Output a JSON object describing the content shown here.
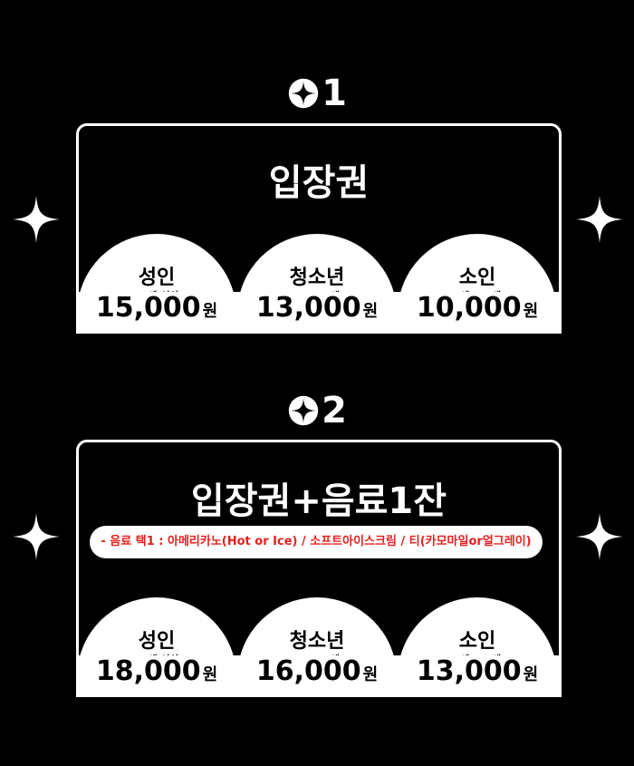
{
  "colors": {
    "background": "#000000",
    "foreground": "#ffffff",
    "accent_red": "#e5201d"
  },
  "section1": {
    "number": "1",
    "title": "입장권",
    "tiers": [
      {
        "label": "성인",
        "sub": "(20세 이상)",
        "price": "15,000",
        "unit": "원"
      },
      {
        "label": "청소년",
        "sub": "(14~19세)",
        "price": "13,000",
        "unit": "원"
      },
      {
        "label": "소인",
        "sub": "(8세~13세)",
        "price": "10,000",
        "unit": "원"
      }
    ]
  },
  "section2": {
    "number": "2",
    "title": "입장권+음료1잔",
    "note": "- 음료 택1 : 아메리카노(Hot or Ice) / 소프트아이스크림 / 티(카모마일or얼그레이)",
    "tiers": [
      {
        "label": "성인",
        "sub": "(20세 이상)",
        "price": "18,000",
        "unit": "원"
      },
      {
        "label": "청소년",
        "sub": "(14~19세)",
        "price": "16,000",
        "unit": "원"
      },
      {
        "label": "소인",
        "sub": "(8세~13세)",
        "price": "13,000",
        "unit": "원"
      }
    ]
  },
  "icons": {
    "number_badge": "four-point-star-circle-icon",
    "decoration": "sparkle-icon"
  }
}
